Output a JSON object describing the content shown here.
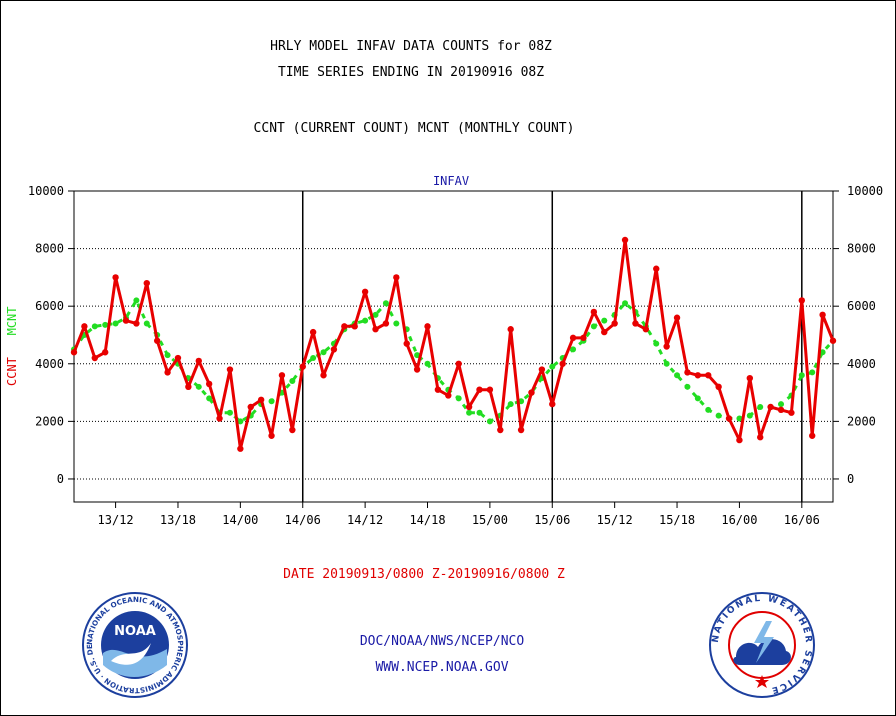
{
  "header": {
    "title_line1": "HRLY MODEL INFAV DATA COUNTS for 08Z",
    "title_line2": "TIME SERIES ENDING IN 20190916 08Z",
    "subtitle": "CCNT (CURRENT COUNT) MCNT (MONTHLY COUNT)"
  },
  "chart_data": {
    "type": "line",
    "title": "INFAV",
    "ylabel_current": "CCNT",
    "ylabel_monthly": "MCNT",
    "xlabel": "DATE 20190913/0800 Z-20190916/0800 Z",
    "ylim": [
      -800,
      10000
    ],
    "yticks": [
      0,
      2000,
      4000,
      6000,
      8000,
      10000
    ],
    "grid": true,
    "x_tick_labels": [
      "13/12",
      "13/18",
      "14/00",
      "14/06",
      "14/12",
      "14/18",
      "15/00",
      "15/06",
      "15/12",
      "15/18",
      "16/00",
      "16/06"
    ],
    "x_tick_hours_from_start": [
      4,
      10,
      16,
      22,
      28,
      34,
      40,
      46,
      52,
      58,
      64,
      70
    ],
    "day_boundaries_hours_from_start": [
      22,
      46,
      70
    ],
    "series": [
      {
        "name": "CCNT",
        "color": "#e80000",
        "values": [
          4400,
          5300,
          4200,
          4400,
          7000,
          5500,
          5400,
          6800,
          4800,
          3700,
          4200,
          3200,
          4100,
          3300,
          2100,
          3800,
          1050,
          2500,
          2750,
          1500,
          3600,
          1700,
          3900,
          5100,
          3600,
          4500,
          5300,
          5300,
          6500,
          5200,
          5400,
          7000,
          4700,
          3800,
          5300,
          3100,
          2900,
          4000,
          2500,
          3100,
          3100,
          1700,
          5200,
          1700,
          3000,
          3800,
          2600,
          4000,
          4900,
          4900,
          5800,
          5100,
          5400,
          8300,
          5400,
          5200,
          7300,
          4600,
          5600,
          3700,
          3600,
          3600,
          3200,
          2100,
          1350,
          3500,
          1450,
          2500,
          2400,
          2300,
          6200,
          1500,
          5700,
          4800
        ]
      },
      {
        "name": "MCNT",
        "color": "#22dd22",
        "values": [
          4500,
          5000,
          5300,
          5350,
          5400,
          5600,
          6200,
          5400,
          5000,
          4300,
          4000,
          3500,
          3200,
          2800,
          2300,
          2300,
          2000,
          2200,
          2600,
          2700,
          3000,
          3400,
          3900,
          4200,
          4400,
          4700,
          5200,
          5400,
          5500,
          5700,
          6100,
          5400,
          5200,
          4300,
          4000,
          3500,
          3100,
          2800,
          2300,
          2300,
          2000,
          2200,
          2600,
          2700,
          3000,
          3500,
          3900,
          4200,
          4500,
          4800,
          5300,
          5500,
          5700,
          6100,
          5800,
          5300,
          4700,
          4000,
          3600,
          3200,
          2800,
          2400,
          2200,
          2100,
          2100,
          2200,
          2500,
          2500,
          2600,
          2900,
          3600,
          3700,
          4400,
          4800
        ]
      }
    ]
  },
  "footer": {
    "link1": "DOC/NOAA/NWS/NCEP/NCO",
    "link2": "WWW.NCEP.NOAA.GOV",
    "logo_left_text": "NOAA",
    "logo_left_ring": "NATIONAL OCEANIC AND ATMOSPHERIC ADMINISTRATION · U.S. DEPARTMENT OF COMMERCE",
    "logo_right_ring": "NATIONAL WEATHER SERVICE"
  },
  "colors": {
    "current": "#e80000",
    "monthly": "#22dd22",
    "title_blue": "#1a1aa6",
    "noaa_blue": "#1c3f9e"
  }
}
